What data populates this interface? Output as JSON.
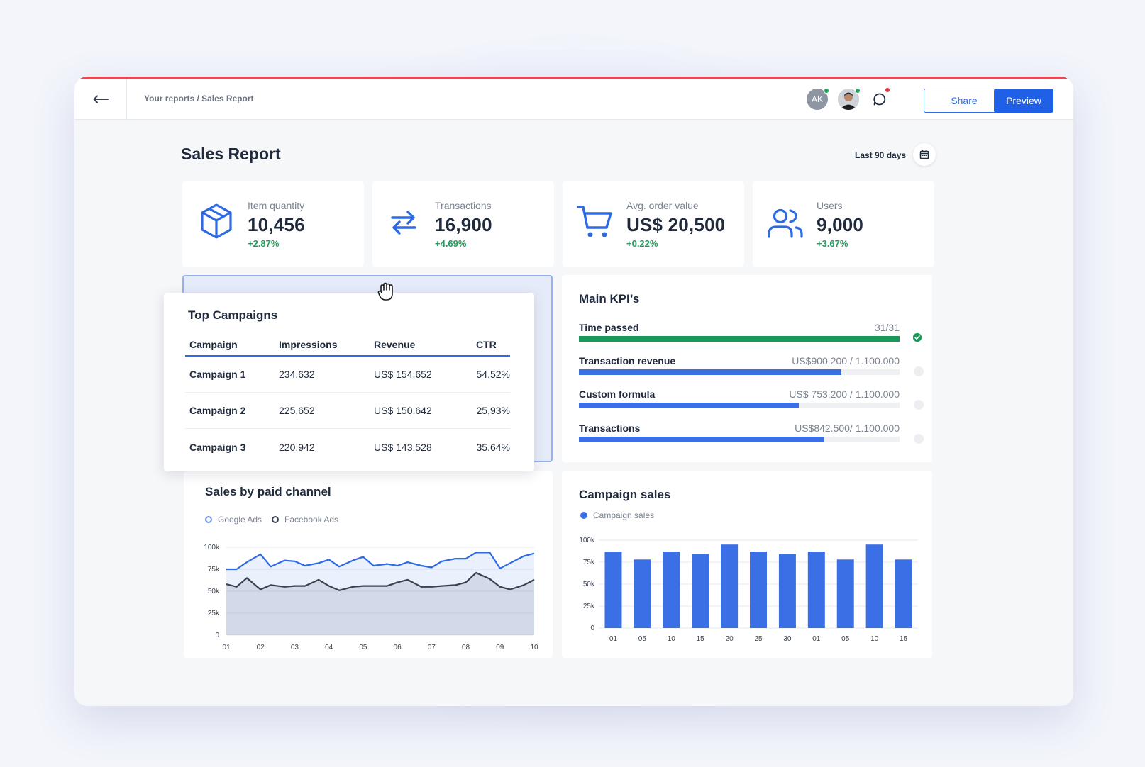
{
  "header": {
    "breadcrumb": "Your reports / Sales Report",
    "avatar_initials": "AK",
    "share_label": "Share",
    "preview_label": "Preview"
  },
  "page": {
    "title": "Sales Report",
    "date_range": "Last 90 days"
  },
  "kpis": [
    {
      "label": "Item quantity",
      "value": "10,456",
      "change": "+2.87%",
      "icon": "box-icon"
    },
    {
      "label": "Transactions",
      "value": "16,900",
      "change": "+4.69%",
      "icon": "arrows-swap-icon"
    },
    {
      "label": "Avg. order value",
      "value": "US$ 20,500",
      "change": "+0.22%",
      "icon": "cart-icon"
    },
    {
      "label": "Users",
      "value": "9,000",
      "change": "+3.67%",
      "icon": "users-icon"
    }
  ],
  "top_campaigns": {
    "title": "Top Campaigns",
    "columns": [
      "Campaign",
      "Impressions",
      "Revenue",
      "CTR"
    ],
    "rows": [
      [
        "Campaign 1",
        "234,632",
        "US$ 154,652",
        "54,52%"
      ],
      [
        "Campaign 2",
        "225,652",
        "US$ 150,642",
        "25,93%"
      ],
      [
        "Campaign 3",
        "220,942",
        "US$ 143,528",
        "35,64%"
      ]
    ]
  },
  "main_kpis": {
    "title": "Main KPI’s",
    "items": [
      {
        "label": "Time passed",
        "value": "31/31",
        "progress": 1.0,
        "color": "#159a5a",
        "done": true
      },
      {
        "label": "Transaction revenue",
        "value": "US$900.200 / 1.100.000",
        "progress": 0.818,
        "color": "#3a6fe6",
        "done": false
      },
      {
        "label": "Custom formula",
        "value": "US$ 753.200 / 1.100.000",
        "progress": 0.685,
        "color": "#3a6fe6",
        "done": false
      },
      {
        "label": "Transactions",
        "value": "US$842.500/ 1.100.000",
        "progress": 0.766,
        "color": "#3a6fe6",
        "done": false
      }
    ]
  },
  "chart_data": [
    {
      "type": "area",
      "title": "Sales by paid channel",
      "x": [
        "01",
        "02",
        "03",
        "04",
        "05",
        "06",
        "07",
        "08",
        "09",
        "10"
      ],
      "x_values": [
        1,
        1.3,
        1.6,
        2,
        2.3,
        2.7,
        3,
        3.3,
        3.7,
        4,
        4.3,
        4.7,
        5,
        5.3,
        5.7,
        6,
        6.3,
        6.7,
        7,
        7.3,
        7.7,
        8,
        8.3,
        8.7,
        9,
        9.3,
        9.7,
        10
      ],
      "ylim": [
        0,
        100000
      ],
      "yticks": [
        "100k",
        "75k",
        "50k",
        "25k",
        "0"
      ],
      "series": [
        {
          "name": "Google Ads",
          "color": "#2d6ae3",
          "values": [
            75000,
            75000,
            83000,
            92000,
            78000,
            85000,
            84000,
            79000,
            82000,
            86000,
            78000,
            85000,
            89000,
            79000,
            81000,
            79000,
            83000,
            79000,
            77000,
            84000,
            87000,
            87000,
            94000,
            94000,
            76000,
            82000,
            90000,
            93000
          ]
        },
        {
          "name": "Facebook Ads",
          "color": "#3a4150",
          "values": [
            58000,
            55000,
            65000,
            52000,
            57000,
            55000,
            56000,
            56000,
            63000,
            56000,
            51000,
            55000,
            56000,
            56000,
            56000,
            60000,
            63000,
            55000,
            55000,
            56000,
            57000,
            60000,
            71000,
            64000,
            55000,
            52000,
            57000,
            63000
          ]
        }
      ]
    },
    {
      "type": "bar",
      "title": "Campaign sales",
      "categories": [
        "01",
        "05",
        "10",
        "15",
        "20",
        "25",
        "30",
        "01",
        "05",
        "10",
        "15"
      ],
      "ylim": [
        0,
        100000
      ],
      "yticks": [
        "100k",
        "75k",
        "50k",
        "25k",
        "0"
      ],
      "series": [
        {
          "name": "Campaign sales",
          "color": "#3a6fe6",
          "values": [
            87000,
            78000,
            87000,
            84000,
            95000,
            87000,
            84000,
            87000,
            78000,
            95000,
            78000
          ]
        }
      ]
    }
  ]
}
